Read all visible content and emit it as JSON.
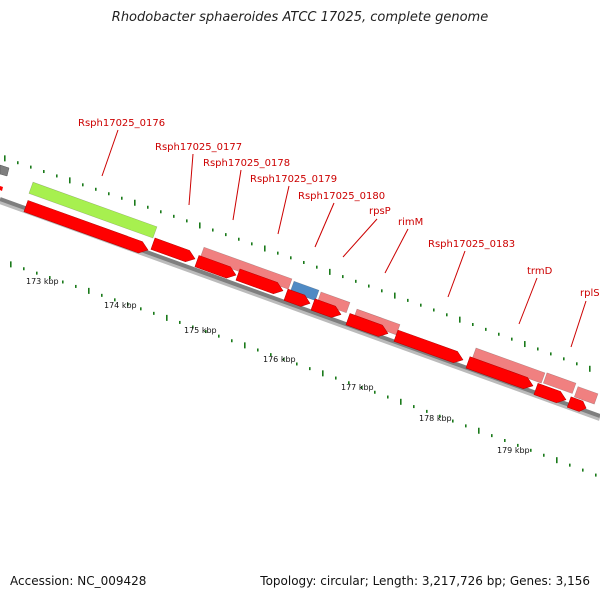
{
  "title": "Rhodobacter sphaeroides ATCC 17025, complete genome",
  "footer": {
    "accession_label": "Accession:",
    "accession": "NC_009428",
    "topology_label": "Topology:",
    "topology": "circular",
    "length_label": "Length:",
    "length": "3,217,726 bp",
    "genes_label": "Genes:",
    "genes": "3,156"
  },
  "colors": {
    "background": "#ffffff",
    "backbone": "#7f7f7f",
    "cds_reverse": "#ff0000",
    "gene_forward": "#f08080",
    "trna": "#4f8ac4",
    "highlight": "#a7f04f",
    "label": "#cc0000",
    "tick": "#1a7a1a",
    "tick_label": "#111111"
  },
  "scale_labels": [
    "173 kbp",
    "174 kbp",
    "175 kbp",
    "176 kbp",
    "177 kbp",
    "178 kbp",
    "179 kbp"
  ],
  "features": [
    {
      "label": "Rsph17025_0176",
      "type": "highlight"
    },
    {
      "label": "Rsph17025_0177",
      "type": "gene"
    },
    {
      "label": "Rsph17025_0178",
      "type": "gene"
    },
    {
      "label": "Rsph17025_0179",
      "type": "gene"
    },
    {
      "label": "Rsph17025_0180",
      "type": "trna"
    },
    {
      "label": "rpsP",
      "type": "gene"
    },
    {
      "label": "rimM",
      "type": "gene"
    },
    {
      "label": "Rsph17025_0183",
      "type": "gene"
    },
    {
      "label": "trmD",
      "type": "gene"
    },
    {
      "label": "rplS",
      "type": "gene"
    }
  ]
}
